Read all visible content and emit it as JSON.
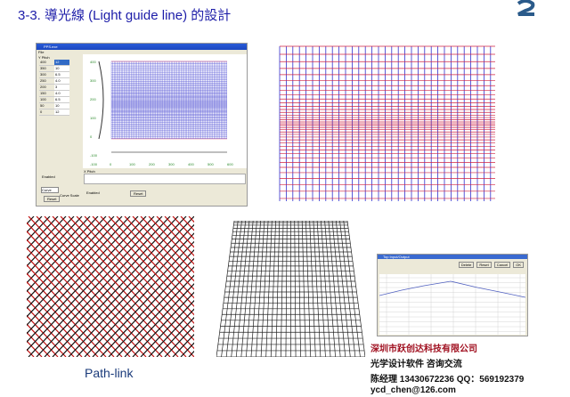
{
  "slide": {
    "title": "3-3. 導光線  (Light guide line) 的設計",
    "caption_pathlink": "Path-link"
  },
  "app": {
    "window_title": "PPS.exe",
    "menu": "File",
    "panel_y": "Y Pitch",
    "panel_x": "X Pitch",
    "enabled": "Enabled",
    "curve": "Curve",
    "reset": "Reset",
    "curve_scale": "Curve Scale",
    "y_rows": [
      [
        "400",
        "12"
      ],
      [
        "350",
        "10"
      ],
      [
        "300",
        "6.5"
      ],
      [
        "250",
        "4.0"
      ],
      [
        "200",
        "3"
      ],
      [
        "150",
        "4.0"
      ],
      [
        "100",
        "6.5"
      ],
      [
        "50",
        "10"
      ],
      [
        "0",
        "12"
      ]
    ],
    "y_ticks": [
      "400",
      "300",
      "200",
      "100",
      "0",
      "-100"
    ],
    "x_ticks": [
      "-100",
      "0",
      "100",
      "200",
      "300",
      "400",
      "500",
      "600"
    ]
  },
  "small_app": {
    "window_title": "Top Input/Output",
    "buttons": [
      "Delete",
      "Reset",
      "Cancel",
      "OK"
    ]
  },
  "contact": {
    "company": "深圳市跃创达科技有限公司",
    "services": "光学设计软件  咨询交流",
    "phone": "陈经理   13430672236   QQ：569192379",
    "email": "ycd_chen@126.com"
  },
  "colors": {
    "title": "#1c1ca8",
    "company": "#a01020",
    "grid_vertical": "#3030d0",
    "grid_horizontal": "#d02040"
  }
}
